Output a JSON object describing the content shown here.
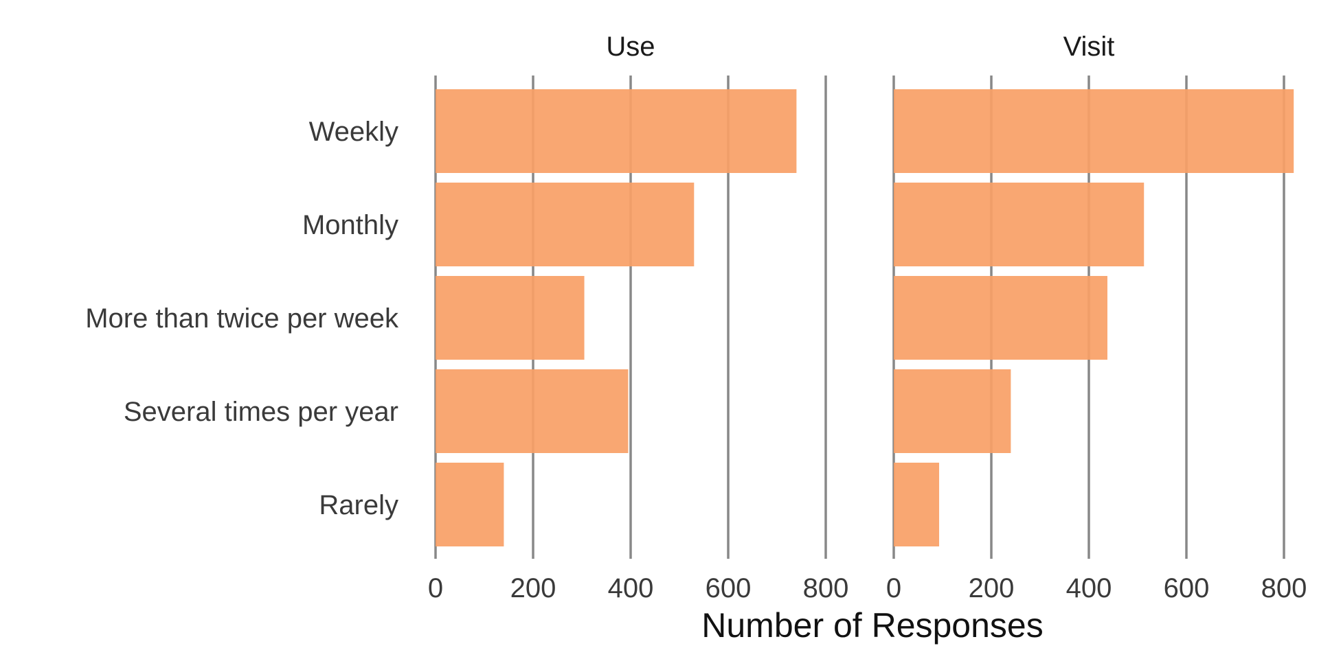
{
  "chart_data": {
    "type": "bar",
    "orientation": "horizontal",
    "xlabel": "Number of Responses",
    "xticks": [
      0,
      200,
      400,
      600,
      800
    ],
    "xlim": [
      0,
      800
    ],
    "categories": [
      "Weekly",
      "Monthly",
      "More than twice per week",
      "Several times per year",
      "Rarely"
    ],
    "colors": {
      "bar": "#F9A066",
      "grid": "#888888"
    },
    "grid": true,
    "legend": "none",
    "panels": [
      {
        "title": "Use",
        "values": [
          740,
          530,
          305,
          395,
          140
        ]
      },
      {
        "title": "Visit",
        "values": [
          820,
          513,
          438,
          240,
          93
        ]
      }
    ]
  }
}
